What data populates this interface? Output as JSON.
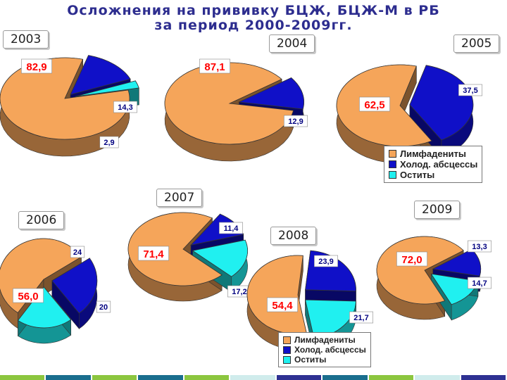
{
  "slide": {
    "title_line1": "Осложнения на прививку БЦЖ, БЦЖ-М в РБ",
    "title_line2": "за период 2000-2009гг."
  },
  "colors": {
    "slice_1": "#F5A55A",
    "slice_2": "#1010C8",
    "slice_3": "#20F0F0",
    "label_text": "#FF0000",
    "label_text_dark": "#000080"
  },
  "legend": {
    "items": [
      "Лимфадениты",
      "Холод. абсцессы",
      "Оститы"
    ]
  },
  "chart_data": [
    {
      "type": "pie",
      "year_label": "2003",
      "categories": [
        "Лимфадениты",
        "Холод. абсцессы",
        "Оститы"
      ],
      "values": [
        82.9,
        14.3,
        2.9
      ],
      "labels": [
        "82,9",
        "14,3",
        "2,9"
      ]
    },
    {
      "type": "pie",
      "year_label": "2004",
      "categories": [
        "Лимфадениты",
        "Холод. абсцессы"
      ],
      "values": [
        87.1,
        12.9
      ],
      "labels": [
        "87,1",
        "12,9"
      ]
    },
    {
      "type": "pie",
      "year_label": "2005",
      "categories": [
        "Лимфадениты",
        "Холод. абсцессы"
      ],
      "values": [
        62.5,
        37.5
      ],
      "labels": [
        "62,5",
        "37,5"
      ]
    },
    {
      "type": "pie",
      "year_label": "2006",
      "categories": [
        "Лимфадениты",
        "Холод. абсцессы",
        "Оститы"
      ],
      "values": [
        56.0,
        24,
        20
      ],
      "labels": [
        "56,0",
        "24",
        "20"
      ]
    },
    {
      "type": "pie",
      "year_label": "2007",
      "categories": [
        "Лимфадениты",
        "Холод. абсцессы",
        "Оститы"
      ],
      "values": [
        71.4,
        11.4,
        17.2
      ],
      "labels": [
        "71,4",
        "11,4",
        "17,2"
      ]
    },
    {
      "type": "pie",
      "year_label": "2008",
      "categories": [
        "Лимфадениты",
        "Холод. абсцессы",
        "Оститы"
      ],
      "values": [
        54.4,
        23.9,
        21.7
      ],
      "labels": [
        "54,4",
        "23,9",
        "21,7"
      ]
    },
    {
      "type": "pie",
      "year_label": "2009",
      "categories": [
        "Лимфадениты",
        "Холод. абсцессы",
        "Оститы"
      ],
      "values": [
        72.0,
        13.3,
        14.7
      ],
      "labels": [
        "72,0",
        "13,3",
        "14,7"
      ]
    }
  ],
  "footer_colors": [
    "#8CC63F",
    "#1A6E8E",
    "#8CC63F",
    "#1A6E8E",
    "#8CC63F",
    "#D0ECEC",
    "#2E3192",
    "#1A6E8E",
    "#8CC63F",
    "#D0ECEC",
    "#2E3192"
  ]
}
